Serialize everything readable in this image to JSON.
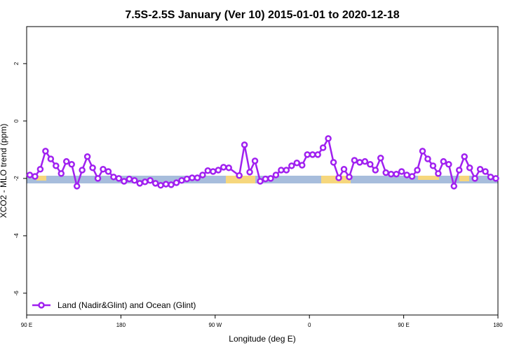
{
  "chart_data": {
    "type": "line",
    "title": "7.5S-2.5S January (Ver 10)   2015-01-01 to 2020-12-18",
    "xlabel": "Longitude (deg E)",
    "ylabel": "XCO2 - MLO trend (ppm)",
    "xlim": [
      90,
      540
    ],
    "ylim": [
      -6.76,
      3.29
    ],
    "xticks": [
      {
        "value": 90,
        "label": "90 E"
      },
      180,
      {
        "value": 270,
        "label": "90 W"
      },
      {
        "value": 360,
        "label": "0"
      },
      {
        "value": 450,
        "label": "90 E"
      },
      {
        "value": 540,
        "label": "180"
      }
    ],
    "yticks": [
      -6,
      -4,
      -2,
      0,
      2
    ],
    "legend": "bottomleft",
    "series": [
      {
        "name": "Land (Nadir&Glint) and Ocean (Glint)",
        "color": "#a020f0",
        "x": [
          93,
          98,
          103,
          108,
          113,
          118,
          123,
          128,
          133,
          138,
          143,
          148,
          153,
          158,
          163,
          168,
          173,
          178,
          183,
          188,
          193,
          198,
          203,
          208,
          213,
          218,
          223,
          228,
          233,
          238,
          243,
          248,
          253,
          258,
          263,
          268,
          273,
          278,
          283,
          293,
          298,
          303,
          308,
          313,
          318,
          323,
          328,
          333,
          338,
          343,
          348,
          353,
          358,
          363,
          368,
          373,
          378,
          383,
          388,
          393,
          398,
          403,
          408,
          413,
          418,
          423,
          428,
          433,
          438,
          443,
          448,
          453,
          458,
          463,
          468,
          473,
          478,
          483,
          488,
          493,
          498,
          503,
          508,
          513,
          518,
          523,
          528,
          533,
          538
        ],
        "values": [
          -1.88,
          -1.93,
          -1.68,
          -1.05,
          -1.32,
          -1.56,
          -1.83,
          -1.41,
          -1.51,
          -2.27,
          -1.71,
          -1.24,
          -1.63,
          -2.0,
          -1.68,
          -1.76,
          -1.95,
          -2.0,
          -2.1,
          -2.02,
          -2.07,
          -2.17,
          -2.12,
          -2.07,
          -2.17,
          -2.24,
          -2.2,
          -2.22,
          -2.15,
          -2.07,
          -2.02,
          -1.98,
          -1.98,
          -1.88,
          -1.73,
          -1.76,
          -1.71,
          -1.61,
          -1.63,
          -1.9,
          -0.83,
          -1.78,
          -1.39,
          -2.1,
          -2.02,
          -2.0,
          -1.88,
          -1.71,
          -1.71,
          -1.56,
          -1.46,
          -1.54,
          -1.17,
          -1.17,
          -1.17,
          -0.93,
          -0.61,
          -1.44,
          -1.98,
          -1.68,
          -1.95,
          -1.37,
          -1.44,
          -1.41,
          -1.51,
          -1.71,
          -1.29,
          -1.8,
          -1.85,
          -1.85,
          -1.76,
          -1.88,
          -1.93,
          -1.71,
          -1.05,
          -1.32,
          -1.56,
          -1.83,
          -1.41,
          -1.51,
          -2.27,
          -1.71,
          -1.24,
          -1.63,
          -2.0,
          -1.68,
          -1.76,
          -1.95,
          -2.0
        ]
      }
    ]
  }
}
